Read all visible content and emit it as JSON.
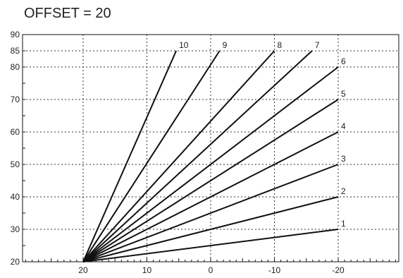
{
  "title": "OFFSET = 20",
  "chart_data": {
    "type": "line",
    "title": "OFFSET = 20",
    "xlabel": "",
    "ylabel": "",
    "x_reversed": true,
    "xlim": [
      29.5,
      -29.5
    ],
    "ylim": [
      20,
      90
    ],
    "grid": true,
    "x_ticks": [
      20,
      10,
      0,
      -10,
      -20
    ],
    "y_ticks": [
      20,
      30,
      40,
      50,
      60,
      70,
      80,
      85,
      90
    ],
    "series": [
      {
        "name": "1",
        "points": [
          [
            20,
            20
          ],
          [
            -20,
            30
          ]
        ]
      },
      {
        "name": "2",
        "points": [
          [
            20,
            20
          ],
          [
            -20,
            40
          ]
        ]
      },
      {
        "name": "3",
        "points": [
          [
            20,
            20
          ],
          [
            -20,
            50
          ]
        ]
      },
      {
        "name": "4",
        "points": [
          [
            20,
            20
          ],
          [
            -20,
            60
          ]
        ]
      },
      {
        "name": "5",
        "points": [
          [
            20,
            20
          ],
          [
            -20,
            70
          ]
        ]
      },
      {
        "name": "6",
        "points": [
          [
            20,
            20
          ],
          [
            -20,
            80
          ]
        ]
      },
      {
        "name": "7",
        "points": [
          [
            20,
            20
          ],
          [
            -15.9,
            85
          ]
        ]
      },
      {
        "name": "8",
        "points": [
          [
            20,
            20
          ],
          [
            -10,
            85
          ]
        ]
      },
      {
        "name": "9",
        "points": [
          [
            20,
            20
          ],
          [
            -1.4,
            85
          ]
        ]
      },
      {
        "name": "10",
        "points": [
          [
            20,
            20
          ],
          [
            5.4,
            85
          ]
        ]
      }
    ]
  }
}
